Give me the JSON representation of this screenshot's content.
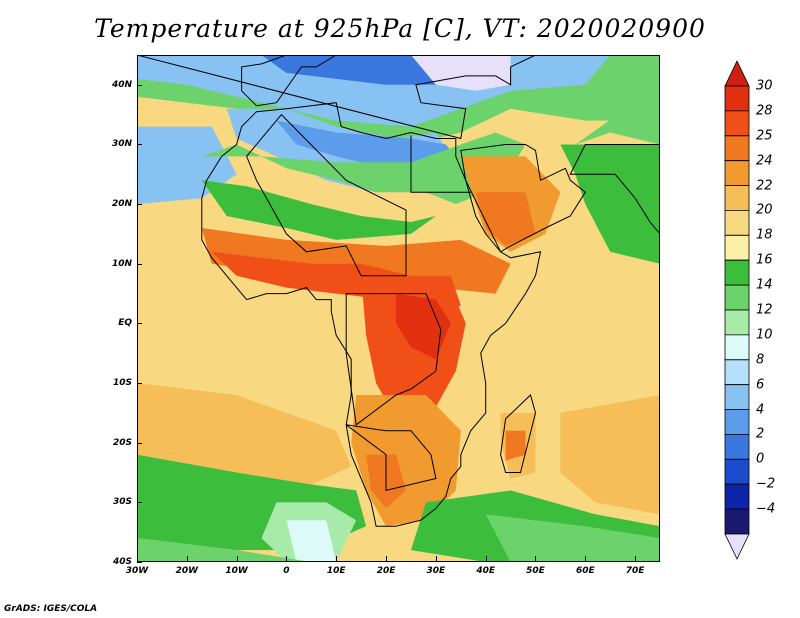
{
  "title": "Temperature at 925hPa [C], VT: 2020020900",
  "footer": "GrADS: IGES/COLA",
  "lat_labels": [
    "40N",
    "30N",
    "20N",
    "10N",
    "EQ",
    "10S",
    "20S",
    "30S",
    "40S"
  ],
  "lon_labels": [
    "30W",
    "20W",
    "10W",
    "0",
    "10E",
    "20E",
    "30E",
    "40E",
    "50E",
    "60E",
    "70E"
  ],
  "colorbar": {
    "levels": [
      "30",
      "28",
      "25",
      "24",
      "22",
      "20",
      "18",
      "16",
      "14",
      "12",
      "10",
      "8",
      "6",
      "4",
      "2",
      "0",
      "−2",
      "−4"
    ],
    "colors": [
      "#e03010",
      "#f05018",
      "#f07820",
      "#f09a30",
      "#f5be58",
      "#f8d880",
      "#fcf0a8",
      "#3cbe3c",
      "#6cd26c",
      "#a8eaa8",
      "#dcfaf8",
      "#b4e0fa",
      "#88c2f2",
      "#5c9cea",
      "#3a78e0",
      "#1c4cce",
      "#0c24a8",
      "#1a1a70"
    ],
    "top_color": "#d02010",
    "bottom_color": "#e6e0fa"
  },
  "map": {
    "lon_range": [
      -30,
      75
    ],
    "lat_range": [
      -40,
      45
    ],
    "colors": {
      "base": "#f8d880",
      "warm1": "#f5be58",
      "warm2": "#f09a30",
      "warm3": "#f07820",
      "hot": "#f05018",
      "hottest": "#e03010",
      "green": "#3cbe3c",
      "lightgreen": "#6cd26c",
      "palegreen": "#a8eaa8",
      "cyan": "#dcfaf8",
      "lightblue": "#b4e0fa",
      "blue": "#88c2f2",
      "midblue": "#5c9cea",
      "deepblue": "#3a78e0",
      "lavender": "#e6e0fa",
      "coast": "#000000"
    }
  }
}
